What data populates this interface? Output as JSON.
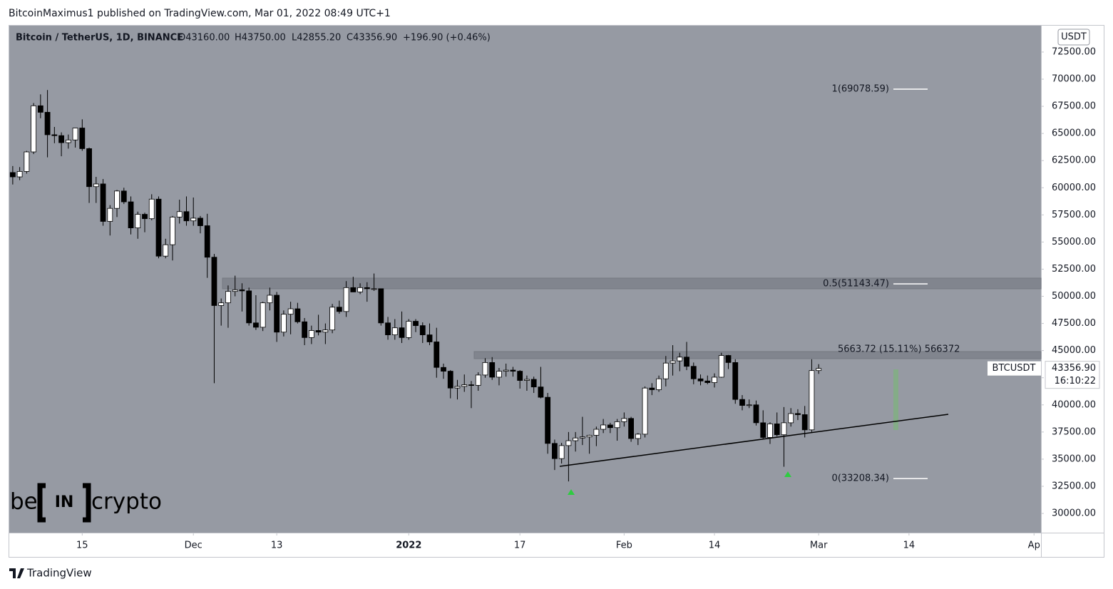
{
  "header": {
    "published": "BitcoinMaximus1 published on TradingView.com, Mar 01, 2022 08:49 UTC+1",
    "footer": "TradingView"
  },
  "watermark": {
    "left": "be",
    "middle": "IN",
    "right": "crypto"
  },
  "chart_data": {
    "type": "candlestick",
    "legend": {
      "symbol": "Bitcoin / TetherUS, 1D, BINANCE",
      "open": "O43160.00",
      "high": "H43750.00",
      "low": "L42855.20",
      "close": "C43356.90",
      "change": "+196.90 (+0.46%)"
    },
    "currency": "USDT",
    "symbol_tag": "BTCUSDT",
    "last_price": {
      "value": 43356.9,
      "label": "43356.90"
    },
    "countdown": "16:10:22",
    "measure_label": "5663.72 (15.11%) 566372",
    "up_color": "#ffffff",
    "down_color": "#000000",
    "wick_color": "#000000",
    "xlim": [
      -10.5,
      138
    ],
    "xticks": [
      {
        "value": 0,
        "label": "15"
      },
      {
        "value": 16,
        "label": "Dec"
      },
      {
        "value": 28,
        "label": "13"
      },
      {
        "value": 47,
        "label": "2022"
      },
      {
        "value": 63,
        "label": "17"
      },
      {
        "value": 78,
        "label": "Feb"
      },
      {
        "value": 91,
        "label": "14"
      },
      {
        "value": 106,
        "label": "Mar"
      },
      {
        "value": 119,
        "label": "14"
      },
      {
        "value": 137,
        "label": "Ap"
      }
    ],
    "ylim": [
      28229,
      74927
    ],
    "yticks": [
      {
        "value": 30000,
        "label": "30000.00"
      },
      {
        "value": 32500,
        "label": "32500.00"
      },
      {
        "value": 35000,
        "label": "35000.00"
      },
      {
        "value": 37500,
        "label": "37500.00"
      },
      {
        "value": 40000,
        "label": "40000.00"
      },
      {
        "value": 42500,
        "label": "42500.00"
      },
      {
        "value": 45000,
        "label": "45000.00"
      },
      {
        "value": 47500,
        "label": "47500.00"
      },
      {
        "value": 50000,
        "label": "50000.00"
      },
      {
        "value": 52500,
        "label": "52500.00"
      },
      {
        "value": 55000,
        "label": "55000.00"
      },
      {
        "value": 57500,
        "label": "57500.00"
      },
      {
        "value": 60000,
        "label": "60000.00"
      },
      {
        "value": 62500,
        "label": "62500.00"
      },
      {
        "value": 65000,
        "label": "65000.00"
      },
      {
        "value": 67500,
        "label": "67500.00"
      },
      {
        "value": 70000,
        "label": "70000.00"
      },
      {
        "value": 72500,
        "label": "72500.00"
      }
    ],
    "fib_levels": [
      {
        "value": 69078.59,
        "label": "1(69078.59)"
      },
      {
        "value": 51143.47,
        "label": "0.5(51143.47)"
      },
      {
        "value": 33208.34,
        "label": "0(33208.34)"
      }
    ],
    "candles": [
      [
        -10,
        61400,
        62000,
        60300,
        61000
      ],
      [
        -9,
        61000,
        61900,
        60700,
        61500
      ],
      [
        -8,
        61500,
        63400,
        61300,
        63300
      ],
      [
        -7,
        63300,
        67800,
        63100,
        67550
      ],
      [
        -6,
        67550,
        68600,
        66400,
        66950
      ],
      [
        -5,
        66950,
        69000,
        62800,
        64880
      ],
      [
        -4,
        64880,
        65600,
        64100,
        64800
      ],
      [
        -3,
        64800,
        65100,
        62900,
        64150
      ],
      [
        -2,
        64150,
        64900,
        63600,
        64400
      ],
      [
        -1,
        64400,
        65500,
        63700,
        65500
      ],
      [
        0,
        65500,
        66300,
        63400,
        63600
      ],
      [
        1,
        63600,
        63700,
        58600,
        60100
      ],
      [
        2,
        60100,
        61000,
        58600,
        60350
      ],
      [
        3,
        60350,
        60800,
        56500,
        56900
      ],
      [
        4,
        56900,
        58400,
        55600,
        58100
      ],
      [
        5,
        58100,
        59800,
        57300,
        59700
      ],
      [
        6,
        59700,
        60000,
        58500,
        58700
      ],
      [
        7,
        58700,
        59200,
        55700,
        56300
      ],
      [
        8,
        56300,
        57800,
        55300,
        57550
      ],
      [
        9,
        57550,
        57700,
        55900,
        57150
      ],
      [
        10,
        57150,
        59400,
        57000,
        58950
      ],
      [
        11,
        58950,
        59200,
        53500,
        53700
      ],
      [
        12,
        53700,
        55300,
        53500,
        54750
      ],
      [
        13,
        54750,
        57400,
        53300,
        57300
      ],
      [
        14,
        57300,
        58900,
        56700,
        57800
      ],
      [
        15,
        57800,
        59200,
        56500,
        56950
      ],
      [
        16,
        56950,
        59100,
        56500,
        57200
      ],
      [
        17,
        57200,
        57400,
        55800,
        56500
      ],
      [
        18,
        56500,
        57600,
        51700,
        53600
      ],
      [
        19,
        53600,
        53900,
        42000,
        49150
      ],
      [
        20,
        49150,
        49800,
        47300,
        49400
      ],
      [
        21,
        49400,
        51000,
        47100,
        50450
      ],
      [
        22,
        50450,
        51900,
        50000,
        50600
      ],
      [
        23,
        50600,
        51200,
        48600,
        50500
      ],
      [
        24,
        50500,
        50800,
        47300,
        47550
      ],
      [
        25,
        47550,
        50100,
        46900,
        47150
      ],
      [
        26,
        47150,
        49500,
        46800,
        49400
      ],
      [
        27,
        49400,
        50800,
        48700,
        50100
      ],
      [
        28,
        50100,
        50400,
        45800,
        46700
      ],
      [
        29,
        46700,
        48700,
        46300,
        48350
      ],
      [
        30,
        48350,
        49500,
        46500,
        48850
      ],
      [
        31,
        48850,
        49400,
        47500,
        47650
      ],
      [
        32,
        47650,
        48000,
        45500,
        46200
      ],
      [
        33,
        46200,
        47300,
        45600,
        46850
      ],
      [
        34,
        46850,
        48300,
        46400,
        46700
      ],
      [
        35,
        46700,
        47500,
        45600,
        46900
      ],
      [
        36,
        46900,
        49300,
        46600,
        49000
      ],
      [
        37,
        49000,
        49600,
        48400,
        48600
      ],
      [
        38,
        48600,
        51400,
        48100,
        50800
      ],
      [
        39,
        50800,
        51800,
        50400,
        50400
      ],
      [
        40,
        50400,
        51200,
        50200,
        50800
      ],
      [
        41,
        50800,
        51300,
        49500,
        50700
      ],
      [
        42,
        50700,
        52100,
        50500,
        50700
      ],
      [
        43,
        50700,
        50700,
        47300,
        47550
      ],
      [
        44,
        47550,
        48100,
        46000,
        46450
      ],
      [
        45,
        46450,
        47900,
        46000,
        47100
      ],
      [
        46,
        47100,
        48600,
        45700,
        46200
      ],
      [
        47,
        46200,
        47900,
        46000,
        47700
      ],
      [
        48,
        47700,
        47900,
        46700,
        47300
      ],
      [
        49,
        47300,
        47600,
        45700,
        46450
      ],
      [
        50,
        46450,
        47500,
        45500,
        45800
      ],
      [
        51,
        45800,
        47100,
        42500,
        43450
      ],
      [
        52,
        43450,
        43800,
        42400,
        43100
      ],
      [
        53,
        43100,
        43200,
        40600,
        41550
      ],
      [
        54,
        41550,
        42300,
        40500,
        41700
      ],
      [
        55,
        41700,
        42800,
        41200,
        41850
      ],
      [
        56,
        41850,
        42200,
        39700,
        41800
      ],
      [
        57,
        41800,
        43000,
        41300,
        42750
      ],
      [
        58,
        42750,
        44300,
        42500,
        43900
      ],
      [
        59,
        43900,
        44400,
        42300,
        42550
      ],
      [
        60,
        42550,
        43400,
        41800,
        43100
      ],
      [
        61,
        43100,
        43800,
        42600,
        43200
      ],
      [
        62,
        43200,
        43500,
        42600,
        43100
      ],
      [
        63,
        43100,
        43200,
        41500,
        42250
      ],
      [
        64,
        42250,
        42700,
        41300,
        42350
      ],
      [
        65,
        42350,
        42600,
        41100,
        41650
      ],
      [
        66,
        41650,
        43500,
        40600,
        40700
      ],
      [
        67,
        40700,
        41100,
        35500,
        36450
      ],
      [
        68,
        36450,
        36800,
        34000,
        35050
      ],
      [
        69,
        35050,
        36500,
        34600,
        36250
      ],
      [
        70,
        36250,
        37500,
        32950,
        36700
      ],
      [
        71,
        36700,
        37500,
        35700,
        36950
      ],
      [
        72,
        36950,
        38900,
        36300,
        37050
      ],
      [
        73,
        37050,
        37250,
        35500,
        37200
      ],
      [
        74,
        37200,
        38000,
        36200,
        37750
      ],
      [
        75,
        37750,
        38700,
        37400,
        38150
      ],
      [
        76,
        38150,
        38350,
        37400,
        37900
      ],
      [
        77,
        37900,
        38700,
        36700,
        38450
      ],
      [
        78,
        38450,
        39300,
        38000,
        38750
      ],
      [
        79,
        38750,
        38900,
        36600,
        36900
      ],
      [
        80,
        36900,
        37400,
        36300,
        37300
      ],
      [
        81,
        37300,
        41700,
        37000,
        41550
      ],
      [
        82,
        41550,
        42000,
        40900,
        41400
      ],
      [
        83,
        41400,
        42700,
        41200,
        42400
      ],
      [
        84,
        42400,
        44500,
        41700,
        43850
      ],
      [
        85,
        43850,
        45500,
        42700,
        44050
      ],
      [
        86,
        44050,
        44800,
        43100,
        44400
      ],
      [
        87,
        44400,
        45800,
        43200,
        43550
      ],
      [
        88,
        43550,
        43900,
        41900,
        42400
      ],
      [
        89,
        42400,
        42800,
        41800,
        42200
      ],
      [
        90,
        42200,
        42700,
        41900,
        42050
      ],
      [
        91,
        42050,
        42900,
        41600,
        42550
      ],
      [
        92,
        42550,
        44800,
        42500,
        44550
      ],
      [
        93,
        44550,
        44600,
        43300,
        43900
      ],
      [
        94,
        43900,
        44200,
        40100,
        40500
      ],
      [
        95,
        40500,
        40900,
        39500,
        39950
      ],
      [
        96,
        39950,
        40500,
        39700,
        40000
      ],
      [
        97,
        40000,
        40400,
        38100,
        38350
      ],
      [
        98,
        38350,
        39500,
        36800,
        37000
      ],
      [
        99,
        37000,
        38400,
        36400,
        38250
      ],
      [
        100,
        38250,
        39300,
        37100,
        37250
      ],
      [
        101,
        37250,
        39800,
        34300,
        38350
      ],
      [
        102,
        38350,
        39700,
        38000,
        39200
      ],
      [
        103,
        39200,
        39600,
        38600,
        39100
      ],
      [
        104,
        39100,
        39900,
        37000,
        37700
      ],
      [
        105,
        37700,
        44200,
        37500,
        43160
      ],
      [
        106,
        43160,
        43750,
        42855.2,
        43356.9
      ]
    ]
  }
}
